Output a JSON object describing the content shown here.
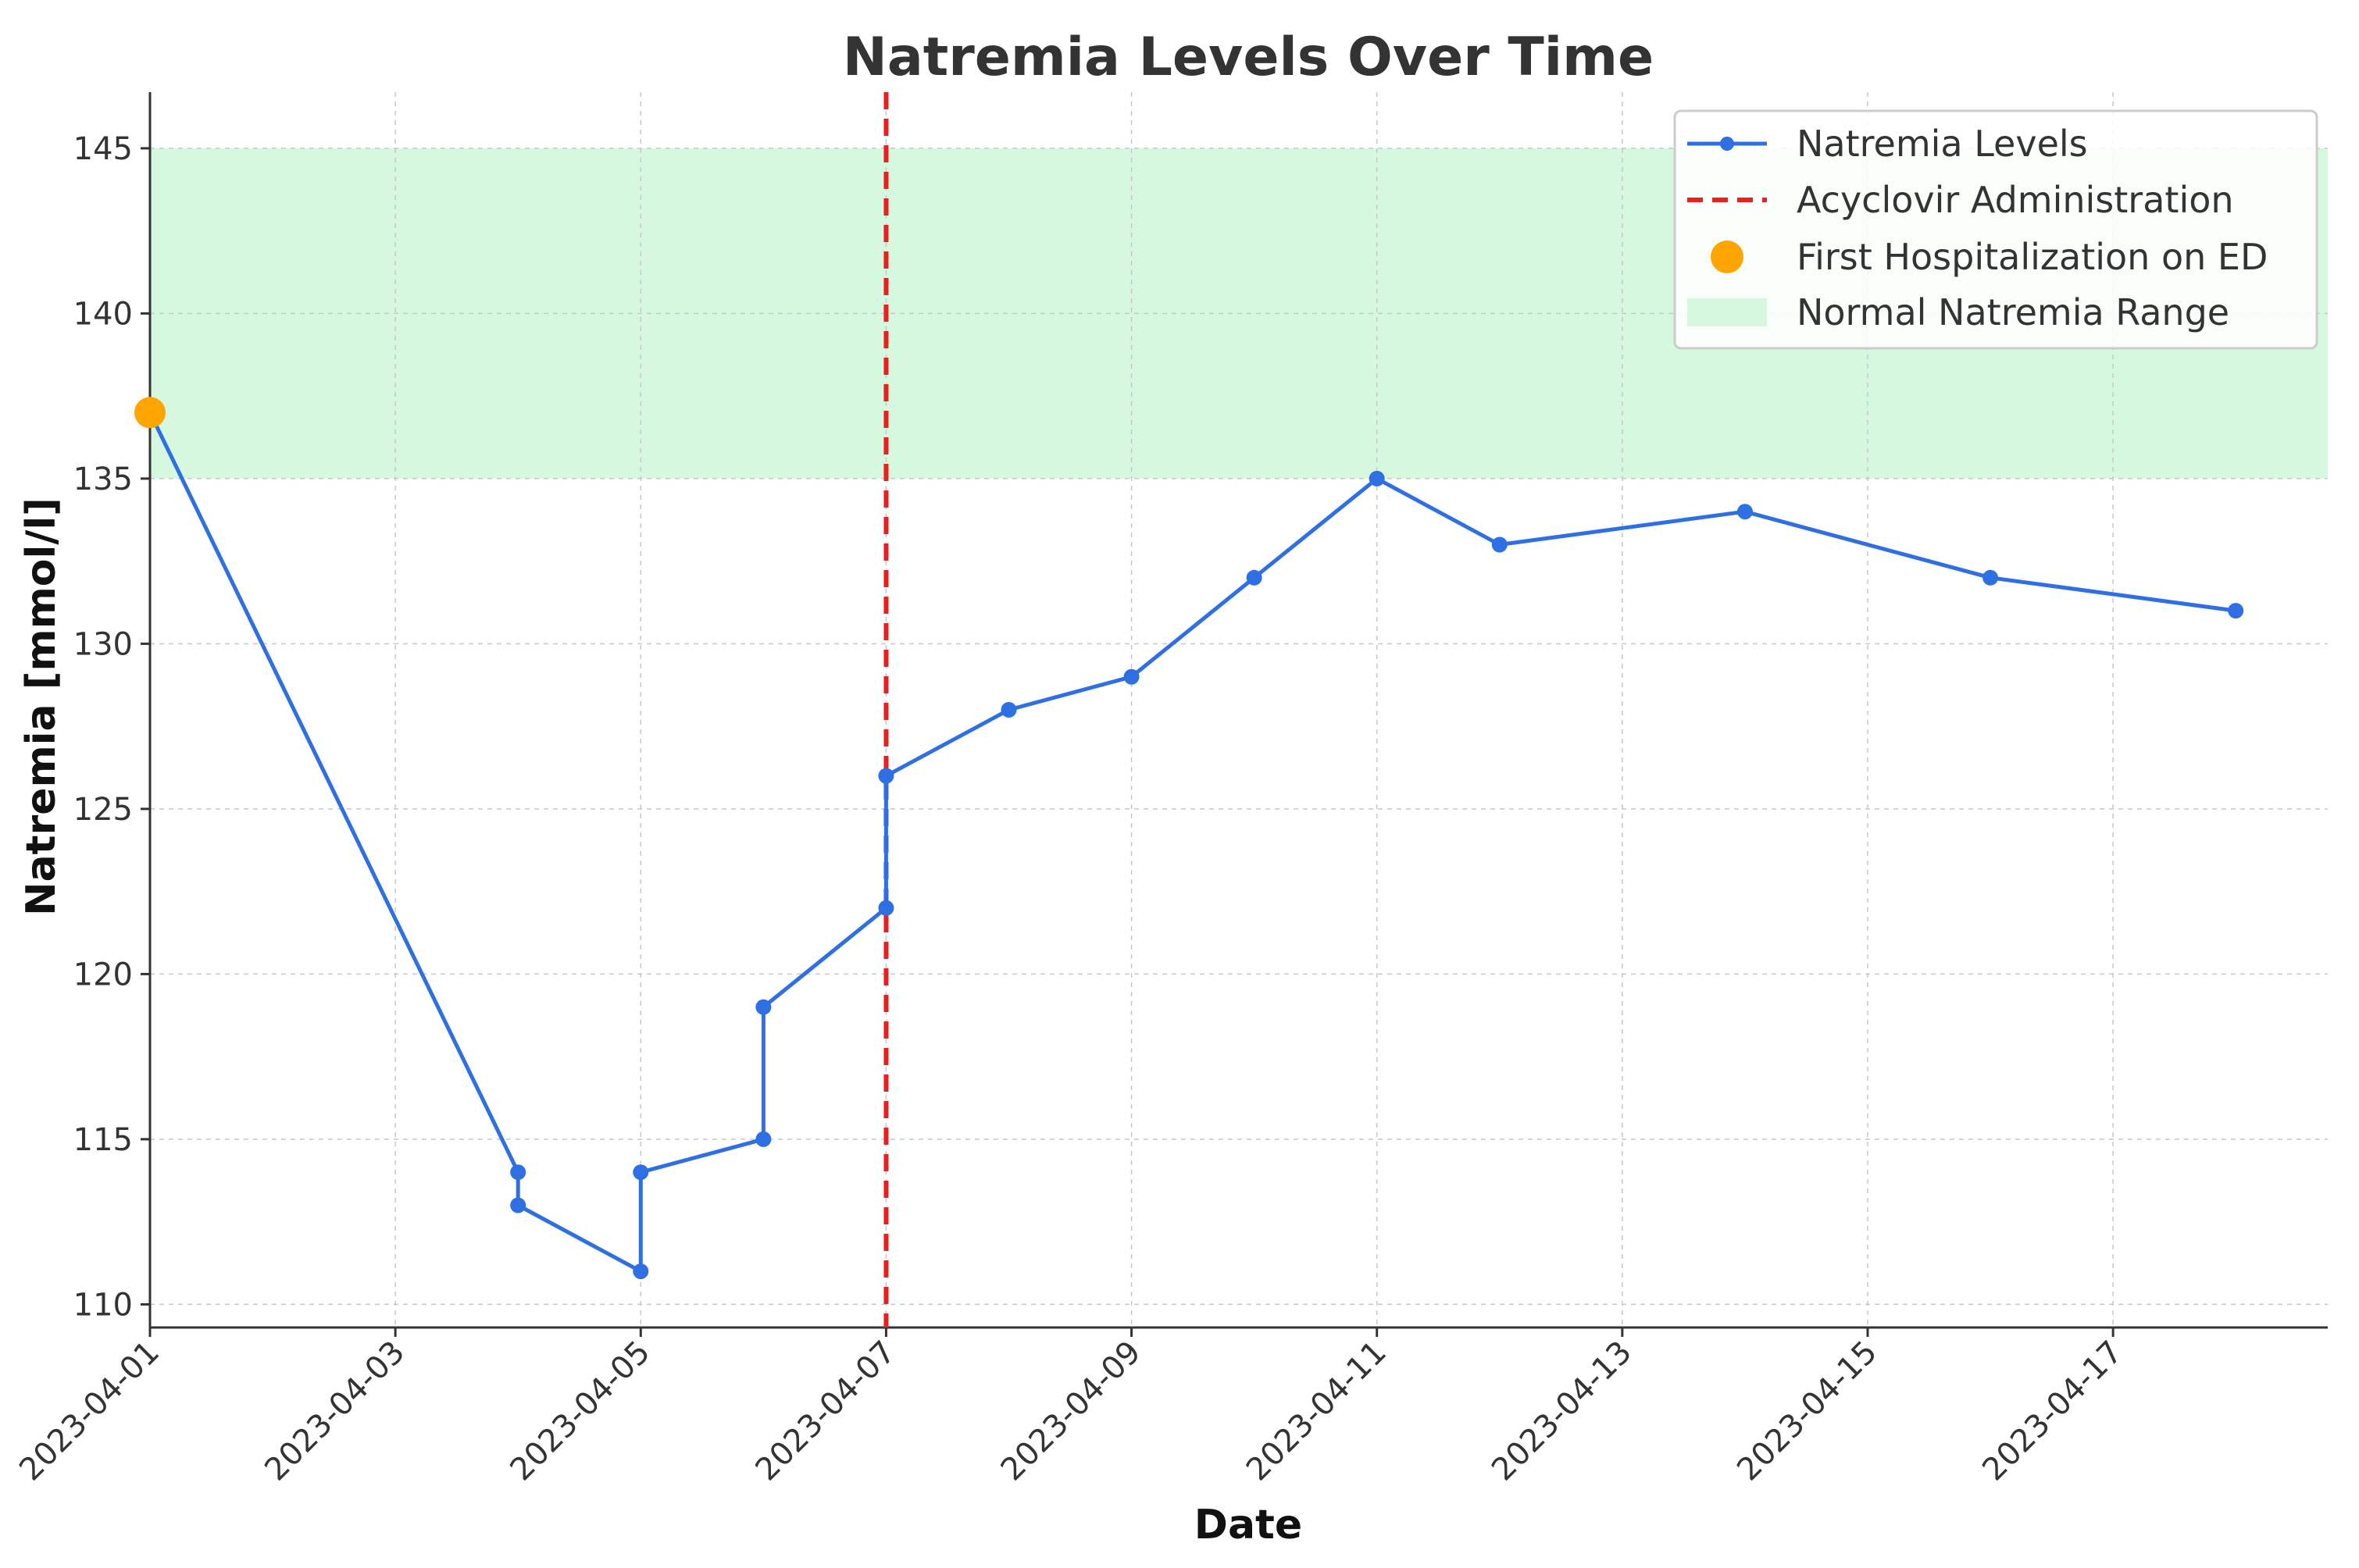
{
  "chart_data": {
    "type": "line",
    "title": "Natremia Levels Over Time",
    "xlabel": "Date",
    "ylabel": "Natremia [mmol/l]",
    "xlim": [
      "2023-04-01",
      "2023-04-18T18:00"
    ],
    "ylim": [
      109.3,
      146.7
    ],
    "x_ticks": [
      "2023-04-01",
      "2023-04-03",
      "2023-04-05",
      "2023-04-07",
      "2023-04-09",
      "2023-04-11",
      "2023-04-13",
      "2023-04-15",
      "2023-04-17"
    ],
    "y_ticks": [
      110,
      115,
      120,
      125,
      130,
      135,
      140,
      145
    ],
    "grid": true,
    "legend_position": "top-right",
    "series": [
      {
        "name": "Natremia Levels",
        "color": "#2f6fe4",
        "marker": "circle",
        "points": [
          {
            "x": "2023-04-01",
            "y": 137
          },
          {
            "x": "2023-04-04",
            "y": 114
          },
          {
            "x": "2023-04-04",
            "y": 113
          },
          {
            "x": "2023-04-05",
            "y": 111
          },
          {
            "x": "2023-04-05",
            "y": 114
          },
          {
            "x": "2023-04-06",
            "y": 115
          },
          {
            "x": "2023-04-06",
            "y": 119
          },
          {
            "x": "2023-04-07",
            "y": 122
          },
          {
            "x": "2023-04-07",
            "y": 126
          },
          {
            "x": "2023-04-08",
            "y": 128
          },
          {
            "x": "2023-04-09",
            "y": 129
          },
          {
            "x": "2023-04-10",
            "y": 132
          },
          {
            "x": "2023-04-11",
            "y": 135
          },
          {
            "x": "2023-04-12",
            "y": 133
          },
          {
            "x": "2023-04-14",
            "y": 134
          },
          {
            "x": "2023-04-16",
            "y": 132
          },
          {
            "x": "2023-04-18",
            "y": 131
          }
        ]
      }
    ],
    "reference_line": {
      "name": "Acyclovir Administration",
      "x": "2023-04-07",
      "color": "#e8201f",
      "style": "dashed"
    },
    "highlight_point": {
      "name": "First Hospitalization on ED",
      "x": "2023-04-01",
      "y": 137,
      "color": "#ffa500"
    },
    "shaded_band": {
      "name": "Normal Natremia Range",
      "y_range": [
        135,
        145
      ],
      "color": "#d5f8df"
    },
    "legend": [
      {
        "label": "Natremia Levels",
        "kind": "line-marker",
        "color": "#2f6fe4"
      },
      {
        "label": "Acyclovir Administration",
        "kind": "dashed-line",
        "color": "#e8201f"
      },
      {
        "label": "First Hospitalization on ED",
        "kind": "dot",
        "color": "#ffa500"
      },
      {
        "label": "Normal Natremia Range",
        "kind": "patch",
        "color": "#d5f8df"
      }
    ]
  }
}
